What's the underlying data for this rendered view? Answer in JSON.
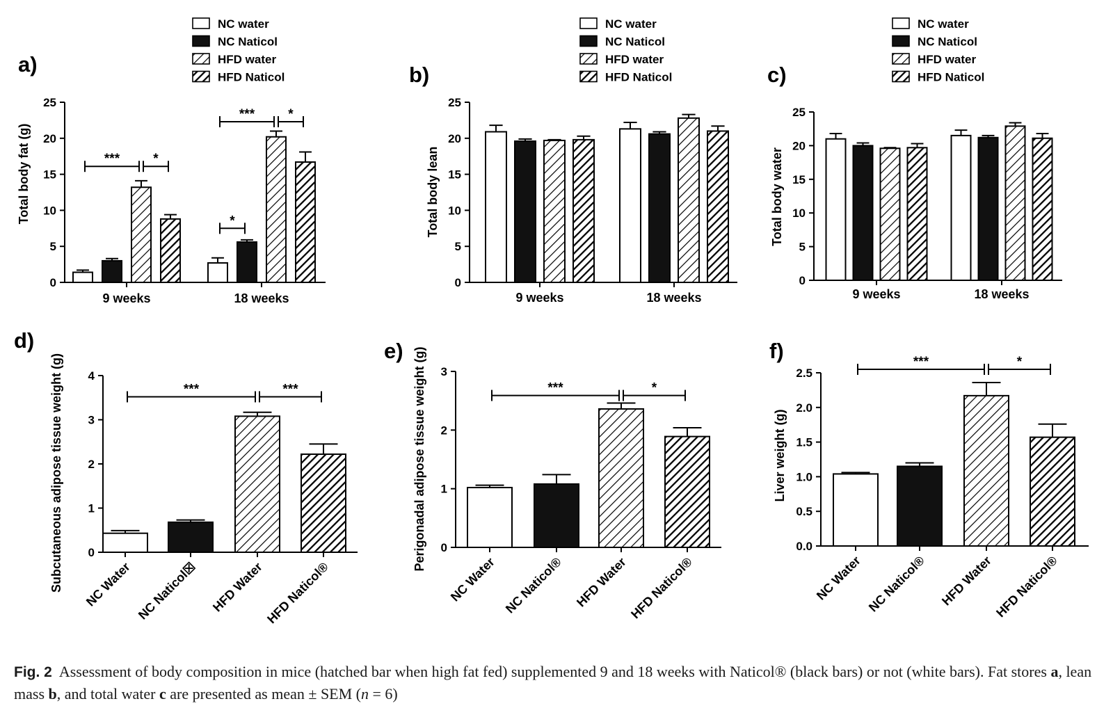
{
  "legend_entries": [
    "NC water",
    "NC Naticol",
    "HFD water",
    "HFD Naticol"
  ],
  "chart_data": [
    {
      "panel": "a)",
      "type": "bar",
      "ylabel": "Total body fat (g)",
      "ylim": [
        0,
        25
      ],
      "yticks": [
        "0",
        "5",
        "10",
        "15",
        "20",
        "25"
      ],
      "ytick_values": [
        0,
        5,
        10,
        15,
        20,
        25
      ],
      "categories": [
        "9 weeks",
        "18 weeks"
      ],
      "series": [
        {
          "name": "NC water",
          "values": [
            1.4,
            2.7
          ],
          "errors": [
            0.3,
            0.7
          ]
        },
        {
          "name": "NC Naticol",
          "values": [
            3.0,
            5.6
          ],
          "errors": [
            0.3,
            0.3
          ]
        },
        {
          "name": "HFD water",
          "values": [
            13.2,
            20.2
          ],
          "errors": [
            0.9,
            0.8
          ]
        },
        {
          "name": "HFD Naticol",
          "values": [
            8.8,
            16.7
          ],
          "errors": [
            0.6,
            1.4
          ]
        }
      ],
      "significance": [
        {
          "group": 0,
          "from": 0,
          "to": 2,
          "y": 16.1,
          "label": "***"
        },
        {
          "group": 0,
          "from": 2,
          "to": 3,
          "y": 16.1,
          "label": "*"
        },
        {
          "group": 1,
          "from": 0,
          "to": 1,
          "y": 7.5,
          "label": "*"
        },
        {
          "group": 1,
          "from": 0,
          "to": 2,
          "y": 22.3,
          "label": "***"
        },
        {
          "group": 1,
          "from": 2,
          "to": 3,
          "y": 22.3,
          "label": "*"
        }
      ]
    },
    {
      "panel": "b)",
      "type": "bar",
      "ylabel": "Total body lean",
      "ylim": [
        0,
        25
      ],
      "yticks": [
        "0",
        "5",
        "10",
        "15",
        "20",
        "25"
      ],
      "ytick_values": [
        0,
        5,
        10,
        15,
        20,
        25
      ],
      "categories": [
        "9 weeks",
        "18 weeks"
      ],
      "series": [
        {
          "name": "NC water",
          "values": [
            20.9,
            21.3
          ],
          "errors": [
            0.9,
            0.9
          ]
        },
        {
          "name": "NC Naticol",
          "values": [
            19.6,
            20.6
          ],
          "errors": [
            0.3,
            0.3
          ]
        },
        {
          "name": "HFD water",
          "values": [
            19.7,
            22.8
          ],
          "errors": [
            0.1,
            0.5
          ]
        },
        {
          "name": "HFD Naticol",
          "values": [
            19.8,
            21.0
          ],
          "errors": [
            0.5,
            0.7
          ]
        }
      ],
      "significance": []
    },
    {
      "panel": "c)",
      "type": "bar",
      "ylabel": "Total body water",
      "ylim": [
        0,
        25
      ],
      "yticks": [
        "0",
        "5",
        "10",
        "15",
        "20",
        "25"
      ],
      "ytick_values": [
        0,
        5,
        10,
        15,
        20,
        25
      ],
      "categories": [
        "9 weeks",
        "18 weeks"
      ],
      "series": [
        {
          "name": "NC water",
          "values": [
            21.0,
            21.5
          ],
          "errors": [
            0.8,
            0.8
          ]
        },
        {
          "name": "NC Naticol",
          "values": [
            20.0,
            21.2
          ],
          "errors": [
            0.4,
            0.3
          ]
        },
        {
          "name": "HFD water",
          "values": [
            19.6,
            22.9
          ],
          "errors": [
            0.1,
            0.5
          ]
        },
        {
          "name": "HFD Naticol",
          "values": [
            19.7,
            21.1
          ],
          "errors": [
            0.6,
            0.7
          ]
        }
      ],
      "significance": []
    },
    {
      "panel": "d)",
      "type": "bar",
      "ylabel": "Subcutaneous adipose tissue weight (g)",
      "ylim": [
        0,
        4
      ],
      "yticks": [
        "0",
        "1",
        "2",
        "3",
        "4"
      ],
      "ytick_values": [
        0,
        1,
        2,
        3,
        4
      ],
      "categories": [
        "NC Water",
        "NC Naticol☒",
        "HFD Water",
        "HFD Naticol®"
      ],
      "values": [
        0.43,
        0.68,
        3.08,
        2.22
      ],
      "errors": [
        0.06,
        0.05,
        0.09,
        0.23
      ],
      "significance": [
        {
          "from": 0,
          "to": 2,
          "y": 3.52,
          "label": "***"
        },
        {
          "from": 2,
          "to": 3,
          "y": 3.52,
          "label": "***"
        }
      ]
    },
    {
      "panel": "e)",
      "type": "bar",
      "ylabel": "Perigonadal adipose tissue weight (g)",
      "ylim": [
        0,
        3
      ],
      "yticks": [
        "0",
        "1",
        "2",
        "3"
      ],
      "ytick_values": [
        0,
        1,
        2,
        3
      ],
      "categories": [
        "NC Water",
        "NC Naticol®",
        "HFD Water",
        "HFD Naticol®"
      ],
      "values": [
        1.02,
        1.08,
        2.36,
        1.89
      ],
      "errors": [
        0.04,
        0.16,
        0.1,
        0.15
      ],
      "significance": [
        {
          "from": 0,
          "to": 2,
          "y": 2.59,
          "label": "***"
        },
        {
          "from": 2,
          "to": 3,
          "y": 2.59,
          "label": "*"
        }
      ]
    },
    {
      "panel": "f)",
      "type": "bar",
      "ylabel": "Liver weight (g)",
      "ylim": [
        0,
        2.5
      ],
      "yticks": [
        "0.0",
        "0.5",
        "1.0",
        "1.5",
        "2.0",
        "2.5"
      ],
      "ytick_values": [
        0,
        0.5,
        1,
        1.5,
        2,
        2.5
      ],
      "categories": [
        "NC Water",
        "NC Naticol®",
        "HFD Water",
        "HFD Naticol®"
      ],
      "values": [
        1.04,
        1.15,
        2.17,
        1.57
      ],
      "errors": [
        0.02,
        0.05,
        0.19,
        0.19
      ],
      "significance": [
        {
          "from": 0,
          "to": 2,
          "y": 2.55,
          "label": "***"
        },
        {
          "from": 2,
          "to": 3,
          "y": 2.55,
          "label": "*"
        }
      ]
    }
  ],
  "caption": {
    "label": "Fig. 2",
    "text_1": "Assessment of body composition in mice (hatched bar when high fat fed) supplemented 9 and 18 weeks with Naticol® (black bars) or not (white bars). Fat stores ",
    "b1": "a",
    "text_2": ", lean mass ",
    "b2": "b",
    "text_3": ", and total water ",
    "b3": "c",
    "text_4": " are presented as mean ± SEM (",
    "n_var": "n",
    "text_5": " = 6)"
  }
}
